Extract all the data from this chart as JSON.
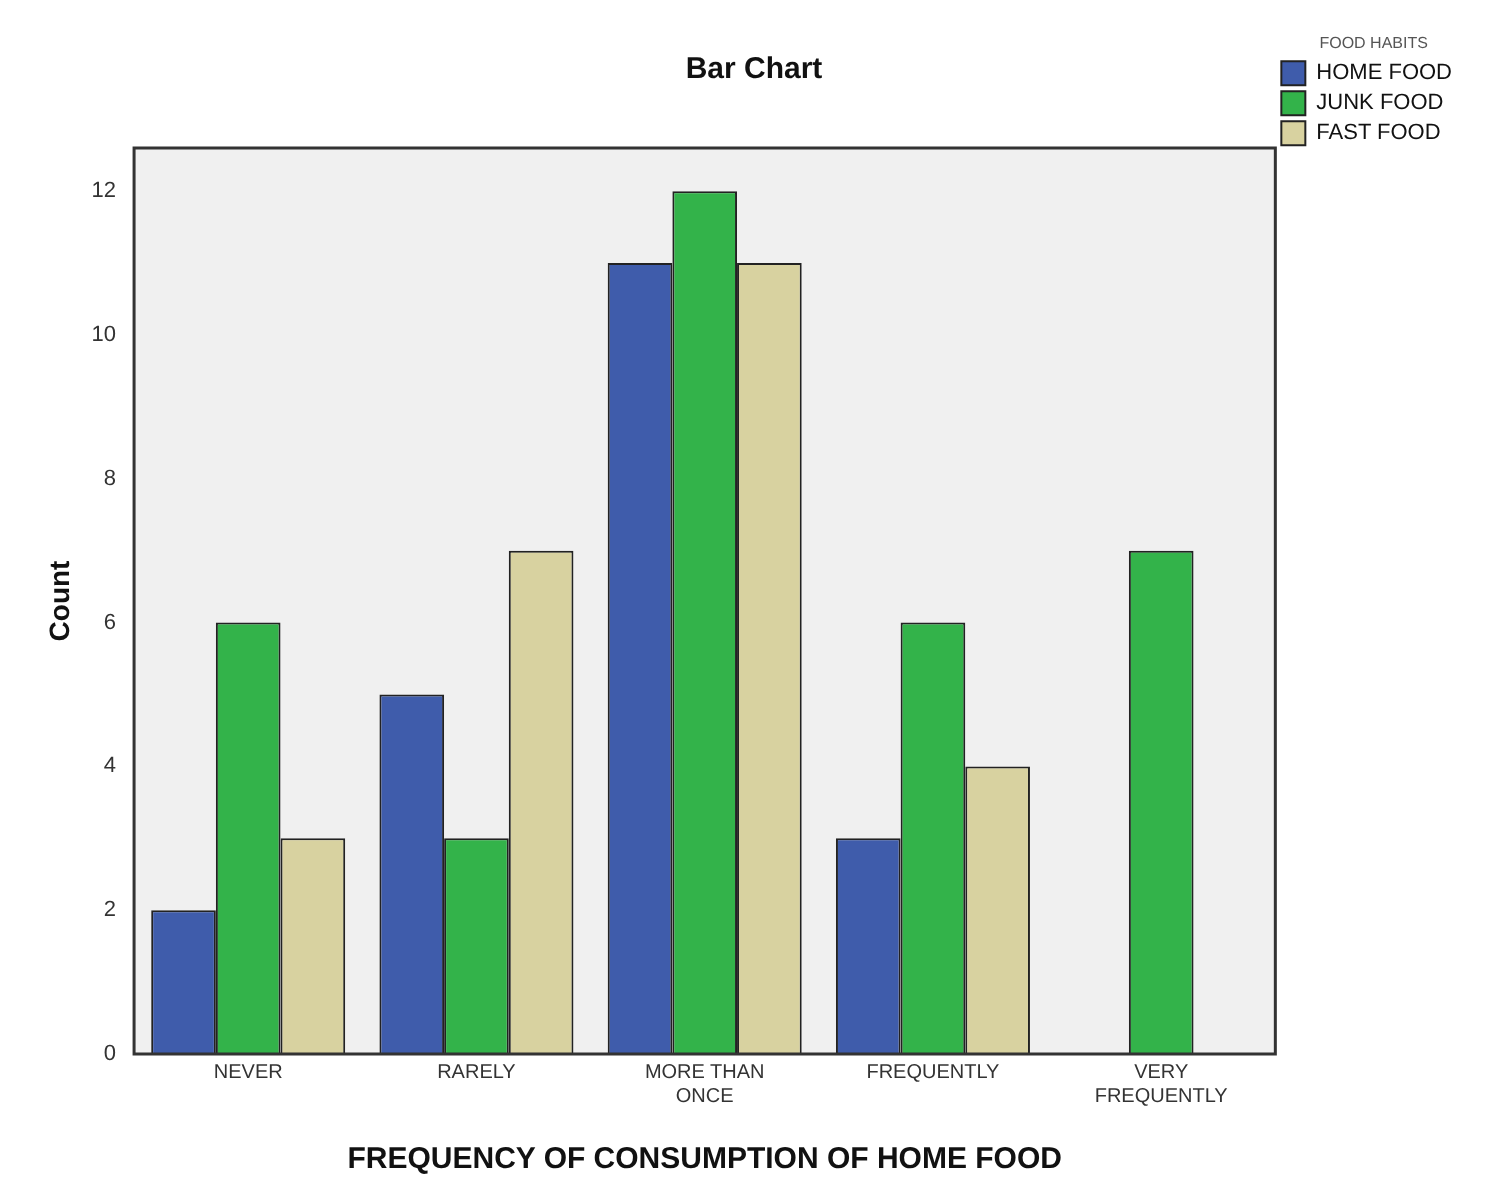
{
  "chart_data": {
    "type": "bar",
    "title": "Bar Chart",
    "xlabel": "FREQUENCY OF CONSUMPTION OF HOME FOOD",
    "ylabel": "Count",
    "legend_title": "FOOD HABITS",
    "legend": "top right",
    "grid": false,
    "categories": [
      "NEVER",
      "RARELY",
      "MORE THAN ONCE",
      "FREQUENTLY",
      "VERY FREQUENTLY"
    ],
    "series": [
      {
        "name": "HOME FOOD",
        "color": "#3f5cab",
        "values": [
          2,
          5,
          11,
          3,
          null
        ]
      },
      {
        "name": "JUNK FOOD",
        "color": "#33b34a",
        "values": [
          6,
          3,
          12,
          6,
          7
        ]
      },
      {
        "name": "FAST FOOD",
        "color": "#d8d2a0",
        "values": [
          3,
          7,
          11,
          4,
          null
        ]
      }
    ],
    "ylim": [
      0,
      12.6
    ],
    "yticks": [
      0,
      2,
      4,
      6,
      8,
      10,
      12
    ]
  }
}
